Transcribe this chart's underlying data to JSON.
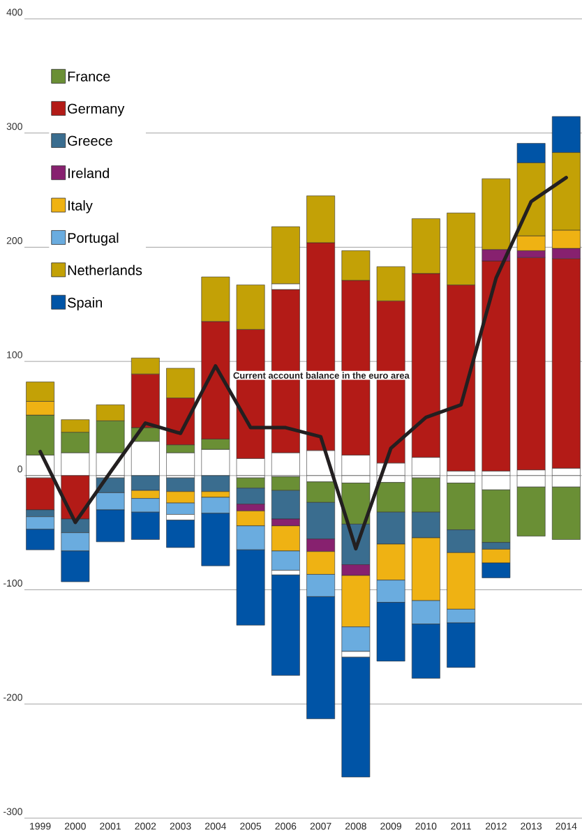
{
  "chart_data": {
    "type": "bar",
    "stacked": true,
    "categories": [
      "1999",
      "2000",
      "2001",
      "2002",
      "2003",
      "2004",
      "2005",
      "2006",
      "2007",
      "2008",
      "2009",
      "2010",
      "2011",
      "2012",
      "2013",
      "2014"
    ],
    "series": [
      {
        "color": "#ffffff",
        "values": [
          18,
          20,
          20,
          30,
          20,
          23,
          15,
          20,
          22,
          18,
          11,
          16,
          4,
          4,
          5,
          6.5
        ]
      },
      {
        "color": "#ffffff",
        "values": [
          -2,
          null,
          -2,
          null,
          -2,
          null,
          -2,
          -1,
          -5.5,
          -6.5,
          -6,
          -2,
          -6.5,
          -12.5,
          -10,
          -10
        ]
      },
      {
        "name": "France",
        "color": "#6a8f35",
        "values": [
          35,
          18,
          28,
          12,
          7,
          9,
          -9,
          -12,
          -18,
          -36,
          -26,
          -30,
          -41,
          -46,
          -43,
          -46
        ]
      },
      {
        "name": "Germany",
        "color": "#b31b17",
        "values": [
          -28,
          -38,
          null,
          47,
          41,
          103,
          113,
          143,
          182,
          153,
          142,
          161,
          163,
          184,
          186,
          183.5
        ]
      },
      {
        "name": "Greece",
        "color": "#3a6d8f",
        "values": [
          -6,
          -12,
          -13,
          -13,
          -12,
          -14,
          -14,
          -25,
          -32,
          -35.5,
          -28,
          -22.5,
          -20,
          -6,
          null,
          null
        ]
      },
      {
        "name": "Ireland",
        "color": "#87216f",
        "values": [
          null,
          null,
          null,
          null,
          null,
          null,
          -6,
          -6,
          -11,
          -9.5,
          null,
          null,
          null,
          10,
          6,
          9
        ]
      },
      {
        "name": "Italy",
        "color": "#efb213",
        "values": [
          12,
          null,
          null,
          -7,
          -10,
          -5,
          -13,
          -22,
          -20,
          -45,
          -31.5,
          -55,
          -49.5,
          -12,
          13,
          16
        ]
      },
      {
        "color": "#ffffff",
        "values": [
          null,
          null,
          null,
          null,
          null,
          null,
          null,
          5,
          null,
          null,
          null,
          null,
          null,
          null,
          null,
          null
        ]
      },
      {
        "name": "Portugal",
        "color": "#6aacdf",
        "values": [
          -11,
          -16,
          -15,
          -12,
          -10,
          -14,
          -21,
          -17,
          -19.5,
          -21.5,
          -19.5,
          -20.5,
          -12,
          null,
          null,
          null
        ]
      },
      {
        "color": "#ffffff",
        "values": [
          null,
          null,
          null,
          null,
          -5,
          null,
          null,
          -4,
          null,
          -5,
          null,
          null,
          null,
          null,
          null,
          null
        ]
      },
      {
        "name": "Netherlands",
        "color": "#c3a106",
        "values": [
          17,
          11,
          14,
          14,
          26,
          39,
          39,
          50,
          41,
          26,
          30,
          48,
          63,
          62,
          64,
          68
        ]
      },
      {
        "name": "Spain",
        "color": "#0054a6",
        "values": [
          -18,
          -27,
          -28,
          -24,
          -24,
          -46,
          -66,
          -88,
          -107,
          -105,
          -51.5,
          -47.5,
          -39,
          -13,
          17,
          31.5
        ]
      },
      {
        "name": "Current account balance in the euro area",
        "type": "line",
        "color": "#231f20",
        "values": [
          21,
          -41,
          3,
          46,
          37,
          96,
          42,
          42,
          34,
          -64,
          24,
          51,
          62,
          173,
          240,
          261
        ]
      }
    ],
    "ylim": [
      -300,
      400
    ],
    "yticks": [
      -300,
      -200,
      -100,
      0,
      100,
      200,
      300,
      400
    ],
    "grid": "y",
    "legend": "top left",
    "marker": "none"
  }
}
